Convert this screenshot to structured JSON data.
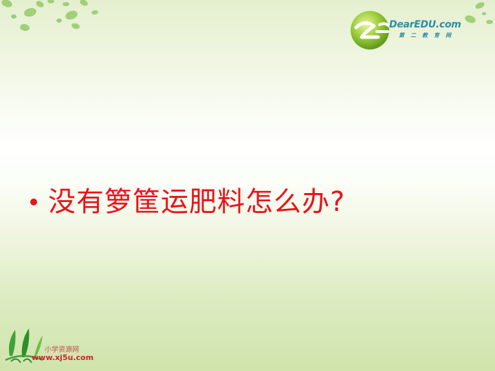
{
  "header": {
    "brand_logo": {
      "name": "DearEDU.com",
      "subtitle": "第二教育网",
      "icon": "green-ball-2e-logo-icon"
    }
  },
  "main": {
    "bullet_text": "没有箩筐运肥料怎么办?"
  },
  "footer": {
    "site_logo": {
      "icon": "green-sprout-logo-icon",
      "name": "小学资源网",
      "url": "www.xj5u.com"
    }
  },
  "colors": {
    "text_red": "#e8131b",
    "brand_teal": "#2d8ea6",
    "leaf_green": "#7fb84a",
    "footer_red": "#c0282d"
  }
}
